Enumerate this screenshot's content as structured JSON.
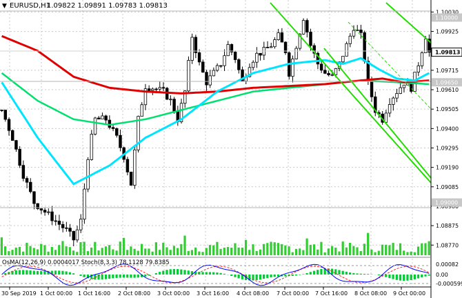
{
  "window": {
    "symbol_label": "EURUSD,H1",
    "ohlc_label": "1.09822 1.09891 1.09783 1.09813"
  },
  "price_axis": {
    "ticks": [
      "1.10030",
      "1.09925",
      "1.09715",
      "1.09610",
      "1.09505",
      "1.09400",
      "1.09295",
      "1.09190",
      "1.09085",
      "1.08980",
      "1.08875",
      "1.08770"
    ],
    "level_labels": [
      "1.10000",
      "1.09813",
      "1.09650",
      "1.09000"
    ]
  },
  "time_axis": {
    "labels": [
      "30 Sep 2019",
      "1 Oct 00:00",
      "1 Oct 16:00",
      "2 Oct 08:00",
      "3 Oct 00:00",
      "3 Oct 16:00",
      "4 Oct 08:00",
      "7 Oct 00:00",
      "7 Oct 16:00",
      "8 Oct 08:00",
      "9 Oct 00:00"
    ]
  },
  "indicator": {
    "label": "OsMA(12,26,9) 0.0004017  Stoch(8,3,3) 78.1128 79.8385",
    "axis_ticks": [
      "0.00082",
      "0.00",
      "-0.000599"
    ]
  },
  "colors": {
    "candle": "#000000",
    "ema_fast": "#00e5ff",
    "ema_mid": "#00e070",
    "ema_slow": "#e00000",
    "channel": "#22dd00",
    "volume": "#32cd32",
    "osma": "#00cc33",
    "stoch_main": "#0000ff",
    "stoch_signal": "#ff2222",
    "grid": "#c8c8c8"
  },
  "chart_data": {
    "type": "candlestick",
    "symbol": "EURUSD",
    "timeframe": "H1",
    "last_ohlc": {
      "open": 1.09822,
      "high": 1.09891,
      "low": 1.09783,
      "close": 1.09813
    },
    "ylim": [
      1.0873,
      1.1008
    ],
    "horizontal_levels": [
      1.1,
      1.0965,
      1.09
    ],
    "close_path": [
      [
        0,
        1.095
      ],
      [
        3,
        1.0935
      ],
      [
        6,
        1.0915
      ],
      [
        9,
        1.09
      ],
      [
        12,
        1.0895
      ],
      [
        15,
        1.089
      ],
      [
        18,
        1.0885
      ],
      [
        20,
        1.088
      ],
      [
        22,
        1.089
      ],
      [
        24,
        1.0925
      ],
      [
        26,
        1.0945
      ],
      [
        29,
        1.0945
      ],
      [
        32,
        1.0935
      ],
      [
        34,
        1.0925
      ],
      [
        36,
        1.091
      ],
      [
        38,
        1.0945
      ],
      [
        40,
        1.0963
      ],
      [
        42,
        1.0962
      ],
      [
        45,
        1.096
      ],
      [
        47,
        1.0955
      ],
      [
        49,
        1.0945
      ],
      [
        51,
        1.096
      ],
      [
        53,
        1.099
      ],
      [
        55,
        1.0975
      ],
      [
        57,
        1.0965
      ],
      [
        59,
        1.097
      ],
      [
        61,
        1.0975
      ],
      [
        63,
        1.0985
      ],
      [
        65,
        1.0978
      ],
      [
        67,
        1.0965
      ],
      [
        69,
        1.0975
      ],
      [
        71,
        1.098
      ],
      [
        73,
        1.0982
      ],
      [
        75,
        1.0985
      ],
      [
        77,
        1.099
      ],
      [
        79,
        1.0982
      ],
      [
        80,
        1.097
      ],
      [
        82,
        1.0985
      ],
      [
        84,
        1.1
      ],
      [
        86,
        1.0985
      ],
      [
        88,
        1.0975
      ],
      [
        90,
        1.097
      ],
      [
        92,
        1.0968
      ],
      [
        94,
        1.0975
      ],
      [
        96,
        1.0985
      ],
      [
        98,
        1.0995
      ],
      [
        100,
        1.099
      ],
      [
        102,
        1.0965
      ],
      [
        104,
        1.095
      ],
      [
        106,
        1.0945
      ],
      [
        108,
        1.0955
      ],
      [
        110,
        1.096
      ],
      [
        112,
        1.0965
      ],
      [
        114,
        1.0962
      ],
      [
        116,
        1.0975
      ],
      [
        118,
        1.099
      ],
      [
        119,
        1.0981
      ]
    ],
    "ema_fast_path": [
      [
        0,
        1.0965
      ],
      [
        10,
        1.0935
      ],
      [
        20,
        1.091
      ],
      [
        30,
        1.092
      ],
      [
        40,
        1.0935
      ],
      [
        50,
        1.0945
      ],
      [
        60,
        1.096
      ],
      [
        70,
        1.097
      ],
      [
        80,
        1.0975
      ],
      [
        90,
        1.0977
      ],
      [
        95,
        1.0975
      ],
      [
        100,
        1.0978
      ],
      [
        105,
        1.0972
      ],
      [
        110,
        1.0967
      ],
      [
        115,
        1.0966
      ],
      [
        119,
        1.097
      ]
    ],
    "ema_mid_path": [
      [
        0,
        1.097
      ],
      [
        10,
        1.0955
      ],
      [
        20,
        1.0945
      ],
      [
        30,
        1.0942
      ],
      [
        40,
        1.0945
      ],
      [
        50,
        1.095
      ],
      [
        60,
        1.0955
      ],
      [
        70,
        1.096
      ],
      [
        80,
        1.0962
      ],
      [
        90,
        1.0964
      ],
      [
        100,
        1.0966
      ],
      [
        110,
        1.0965
      ],
      [
        119,
        1.0964
      ]
    ],
    "ema_slow_path": [
      [
        0,
        1.099
      ],
      [
        10,
        1.0982
      ],
      [
        20,
        1.0968
      ],
      [
        30,
        1.0962
      ],
      [
        40,
        1.096
      ],
      [
        50,
        1.0959
      ],
      [
        60,
        1.096
      ],
      [
        70,
        1.0962
      ],
      [
        80,
        1.0963
      ],
      [
        90,
        1.0964
      ],
      [
        100,
        1.0966
      ],
      [
        106,
        1.0967
      ],
      [
        112,
        1.0965
      ],
      [
        119,
        1.0966
      ]
    ]
  }
}
